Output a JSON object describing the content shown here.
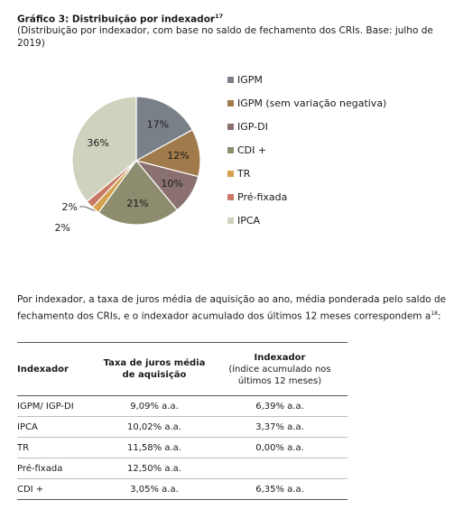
{
  "title": "Gráfico 3: Distribuição por indexador",
  "title_footnote": "17",
  "subtitle": "(Distribuição por indexador, com base no saldo de fechamento dos CRIs. Base: julho de 2019)",
  "chart_data": {
    "type": "pie",
    "slices": [
      {
        "label": "IGPM",
        "value": 17,
        "display": "17%",
        "color": "#7a8088"
      },
      {
        "label": "IGPM (sem variação negativa)",
        "value": 12,
        "display": "12%",
        "color": "#a07a4a"
      },
      {
        "label": "IGP-DI",
        "value": 10,
        "display": "10%",
        "color": "#8a7170"
      },
      {
        "label": "CDI +",
        "value": 21,
        "display": "21%",
        "color": "#8d8c6f"
      },
      {
        "label": "TR",
        "value": 2,
        "display": "2%",
        "color": "#d4a14e"
      },
      {
        "label": "Pré-fixada",
        "value": 2,
        "display": "2%",
        "color": "#c97a64"
      },
      {
        "label": "IPCA",
        "value": 36,
        "display": "36%",
        "color": "#cfd2bd"
      }
    ],
    "legend_position": "right"
  },
  "paragraph": "Por indexador, a taxa de juros média de aquisição ao ano, média ponderada pelo saldo de fechamento dos CRIs, e o indexador acumulado dos últimos 12 meses correspondem a",
  "paragraph_footnote": "18",
  "paragraph_end": ":",
  "table": {
    "headers": {
      "col1": "Indexador",
      "col2": "Taxa de juros média de aquisição",
      "col3_title": "Indexador",
      "col3_sub": "(índice acumulado nos últimos 12 meses)"
    },
    "rows": [
      {
        "indexador": "IGPM/ IGP-DI",
        "taxa": "9,09% a.a.",
        "acumulado": "6,39% a.a."
      },
      {
        "indexador": "IPCA",
        "taxa": "10,02% a.a.",
        "acumulado": "3,37% a.a."
      },
      {
        "indexador": "TR",
        "taxa": "11,58% a.a.",
        "acumulado": "0,00% a.a."
      },
      {
        "indexador": "Pré-fixada",
        "taxa": "12,50% a.a.",
        "acumulado": ""
      },
      {
        "indexador": "CDI +",
        "taxa": "3,05% a.a.",
        "acumulado": "6,35% a.a."
      }
    ]
  }
}
